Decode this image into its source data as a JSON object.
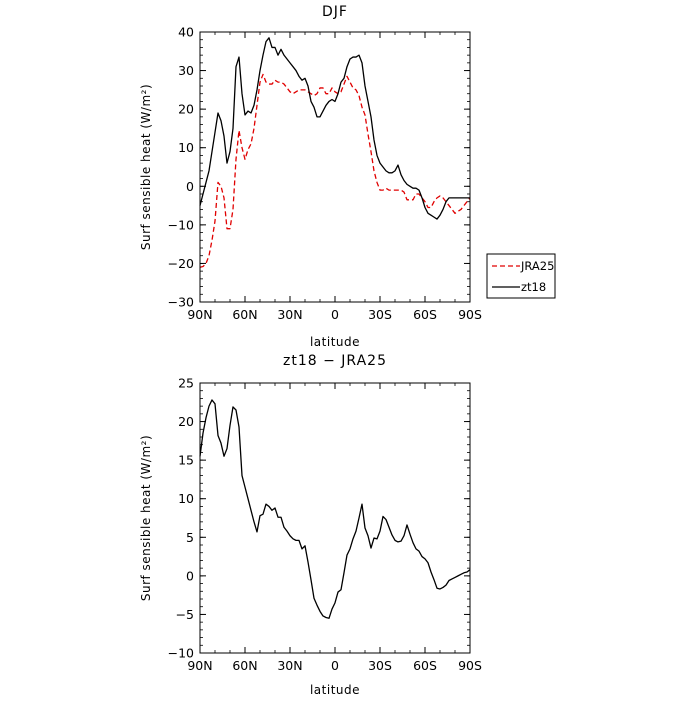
{
  "chart_data": [
    {
      "type": "line",
      "title": "DJF",
      "xlabel": "latitude",
      "ylabel": "Surf sensible heat (W/m²)",
      "xlim": [
        90,
        -90
      ],
      "ylim": [
        -30,
        40
      ],
      "xticks": [
        90,
        60,
        30,
        0,
        -30,
        -60,
        -90
      ],
      "xtick_labels": [
        "90N",
        "60N",
        "30N",
        "0",
        "30S",
        "60S",
        "90S"
      ],
      "yticks": [
        -30,
        -20,
        -10,
        0,
        10,
        20,
        30,
        40
      ],
      "ytick_labels": [
        "−30",
        "−20",
        "−10",
        "0",
        "10",
        "20",
        "30",
        "40"
      ],
      "legend_position": "outside-right",
      "series": [
        {
          "name": "JRA25",
          "color": "#e00000",
          "dash": "dashed",
          "x": [
            90,
            88,
            86,
            84,
            82,
            80,
            78,
            76,
            74,
            72,
            70,
            68,
            66,
            64,
            62,
            60,
            58,
            56,
            54,
            52,
            50,
            48,
            46,
            44,
            42,
            40,
            38,
            36,
            34,
            32,
            30,
            28,
            26,
            24,
            22,
            20,
            18,
            16,
            14,
            12,
            10,
            8,
            6,
            4,
            2,
            0,
            -2,
            -4,
            -6,
            -8,
            -10,
            -12,
            -14,
            -16,
            -18,
            -20,
            -22,
            -24,
            -26,
            -28,
            -30,
            -32,
            -34,
            -36,
            -38,
            -40,
            -42,
            -44,
            -46,
            -48,
            -50,
            -52,
            -54,
            -56,
            -58,
            -60,
            -62,
            -64,
            -66,
            -68,
            -70,
            -72,
            -74,
            -76,
            -78,
            -80,
            -82,
            -84,
            -86,
            -88,
            -90
          ],
          "y": [
            -21,
            -20.8,
            -20,
            -18,
            -14,
            -9,
            1,
            0,
            -3,
            -11,
            -11,
            -6,
            7,
            14.5,
            10,
            7,
            9.5,
            11,
            15,
            21,
            27,
            29,
            27,
            26.5,
            26.5,
            27.5,
            27,
            27,
            26.5,
            25.5,
            24.5,
            24,
            24.5,
            25,
            25,
            25,
            24.5,
            24,
            23.5,
            24,
            25.5,
            25.5,
            24,
            24,
            25.5,
            24.5,
            24,
            24.5,
            26.5,
            28.5,
            27,
            25.5,
            25,
            23.5,
            20.5,
            18.5,
            13.5,
            9,
            4,
            1,
            -1,
            -1,
            -0.5,
            -1,
            -1,
            -1,
            -1,
            -1,
            -1.5,
            -3.5,
            -3.5,
            -3.5,
            -2,
            -2,
            -3,
            -4,
            -5.5,
            -5.5,
            -4,
            -3,
            -2.5,
            -3,
            -4,
            -5,
            -6,
            -7,
            -6.5,
            -6,
            -5,
            -4,
            -3
          ]
        },
        {
          "name": "zt18",
          "color": "#000000",
          "dash": "solid",
          "x": [
            90,
            88,
            86,
            84,
            82,
            80,
            78,
            76,
            74,
            72,
            70,
            68,
            66,
            64,
            62,
            60,
            58,
            56,
            54,
            52,
            50,
            48,
            46,
            44,
            42,
            40,
            38,
            36,
            34,
            32,
            30,
            28,
            26,
            24,
            22,
            20,
            18,
            16,
            14,
            12,
            10,
            8,
            6,
            4,
            2,
            0,
            -2,
            -4,
            -6,
            -8,
            -10,
            -12,
            -14,
            -16,
            -18,
            -20,
            -22,
            -24,
            -26,
            -28,
            -30,
            -32,
            -34,
            -36,
            -38,
            -40,
            -42,
            -44,
            -46,
            -48,
            -50,
            -52,
            -54,
            -56,
            -58,
            -60,
            -62,
            -64,
            -66,
            -68,
            -70,
            -72,
            -74,
            -76,
            -78,
            -80,
            -82,
            -84,
            -86,
            -88,
            -90
          ],
          "y": [
            -5,
            -2,
            1,
            4,
            9,
            14,
            19,
            17,
            13,
            6,
            9,
            15,
            31,
            33.5,
            24,
            18.5,
            19.5,
            19,
            21,
            25,
            30,
            34,
            37.5,
            38.5,
            36,
            36,
            34,
            35.5,
            34,
            33,
            32,
            31,
            30,
            28.5,
            27.5,
            28,
            26,
            22,
            20.5,
            18,
            18,
            19.5,
            21,
            22,
            22.5,
            22,
            24,
            27,
            28,
            31,
            33,
            33.5,
            33.5,
            34,
            32,
            26,
            22,
            18,
            12,
            8,
            6,
            5,
            4,
            3.5,
            3.5,
            4,
            5.5,
            3,
            1.5,
            0.5,
            0,
            -0.5,
            -0.5,
            -1,
            -3,
            -5.5,
            -7,
            -7.5,
            -8,
            -8.5,
            -7.5,
            -6,
            -4,
            -3,
            -3,
            -3,
            -3,
            -3,
            -3,
            -3,
            -3
          ]
        }
      ]
    },
    {
      "type": "line",
      "title": "zt18 − JRA25",
      "xlabel": "latitude",
      "ylabel": "Surf sensible heat (W/m²)",
      "xlim": [
        90,
        -90
      ],
      "ylim": [
        -10,
        25
      ],
      "xticks": [
        90,
        60,
        30,
        0,
        -30,
        -60,
        -90
      ],
      "xtick_labels": [
        "90N",
        "60N",
        "30N",
        "0",
        "30S",
        "60S",
        "90S"
      ],
      "yticks": [
        -10,
        -5,
        0,
        5,
        10,
        15,
        20,
        25
      ],
      "ytick_labels": [
        "−10",
        "−5",
        "0",
        "5",
        "10",
        "15",
        "20",
        "25"
      ],
      "series": [
        {
          "color": "#000000",
          "dash": "solid",
          "x": [
            90,
            88,
            86,
            84,
            82,
            80,
            78,
            76,
            74,
            72,
            70,
            68,
            66,
            64,
            62,
            60,
            58,
            56,
            54,
            52,
            50,
            48,
            46,
            44,
            42,
            40,
            38,
            36,
            34,
            32,
            30,
            28,
            26,
            24,
            22,
            20,
            18,
            16,
            14,
            12,
            10,
            8,
            6,
            4,
            2,
            0,
            -2,
            -4,
            -6,
            -8,
            -10,
            -12,
            -14,
            -16,
            -18,
            -20,
            -22,
            -24,
            -26,
            -28,
            -30,
            -32,
            -34,
            -36,
            -38,
            -40,
            -42,
            -44,
            -46,
            -48,
            -50,
            -52,
            -54,
            -56,
            -58,
            -60,
            -62,
            -64,
            -66,
            -68,
            -70,
            -72,
            -74,
            -76,
            -78,
            -80,
            -82,
            -84,
            -86,
            -88,
            -90
          ],
          "y": [
            15.5,
            18.5,
            20.5,
            22,
            22.8,
            22.3,
            18.2,
            17.2,
            15.5,
            16.5,
            19.5,
            21.9,
            21.5,
            19.3,
            13,
            11.5,
            10,
            8.5,
            7,
            5.7,
            7.8,
            8,
            9.3,
            9,
            8.5,
            8.8,
            7.6,
            7.6,
            6.3,
            5.8,
            5.2,
            4.8,
            4.6,
            4.6,
            3.5,
            3.9,
            1.8,
            -0.5,
            -2.9,
            -3.8,
            -4.6,
            -5.2,
            -5.4,
            -5.5,
            -4.3,
            -3.5,
            -2.1,
            -1.8,
            0.4,
            2.7,
            3.5,
            4.8,
            5.8,
            7.5,
            9.3,
            6.2,
            5.2,
            3.6,
            4.9,
            4.8,
            5.8,
            7.7,
            7.3,
            6.3,
            5.3,
            4.6,
            4.4,
            4.5,
            5.2,
            6.6,
            5.4,
            4.3,
            3.5,
            3.2,
            2.5,
            2.2,
            1.7,
            0.5,
            -0.5,
            -1.6,
            -1.7,
            -1.5,
            -1.2,
            -0.6,
            -0.4,
            -0.2,
            0,
            0.2,
            0.4,
            0.5,
            0.8
          ]
        }
      ]
    }
  ]
}
